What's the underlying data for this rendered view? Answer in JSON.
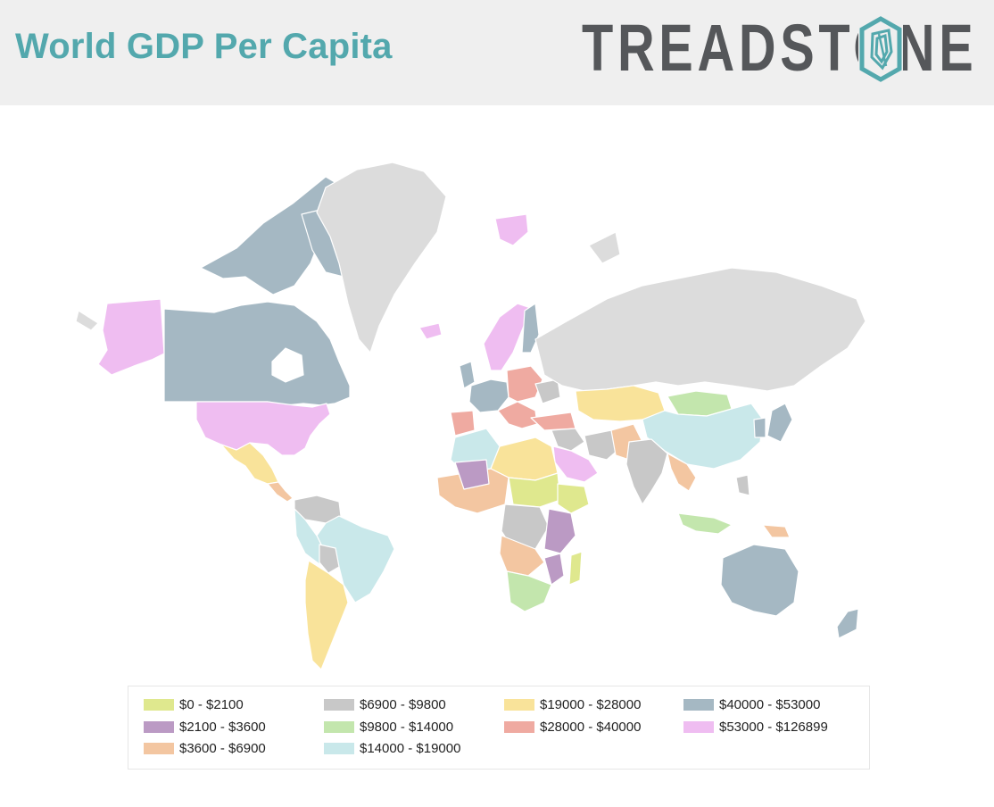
{
  "header": {
    "title": "World GDP Per Capita",
    "logo_text": "TREADSTONE",
    "logo_icon": "treadstone-o-logo-icon"
  },
  "legend": {
    "items": [
      {
        "label": "$0 - $2100",
        "color": "#dfe88e"
      },
      {
        "label": "$2100 - $3600",
        "color": "#bb9ac4"
      },
      {
        "label": "$3600 - $6900",
        "color": "#f3c6a1"
      },
      {
        "label": "$6900 - $9800",
        "color": "#c8c8c8"
      },
      {
        "label": "$9800 - $14000",
        "color": "#c3e6ad"
      },
      {
        "label": "$14000 - $19000",
        "color": "#c9e8ea"
      },
      {
        "label": "$19000 - $28000",
        "color": "#f9e39a"
      },
      {
        "label": "$28000 - $40000",
        "color": "#efaaa1"
      },
      {
        "label": "$40000 - $53000",
        "color": "#a5b8c3"
      },
      {
        "label": "$53000 - $126899",
        "color": "#efbdf1"
      }
    ]
  },
  "colors": {
    "title": "#53a8ad",
    "header_bg": "#efefef",
    "logo_gray": "#55575a",
    "logo_teal": "#53a8ad",
    "no_data": "#dcdcdc"
  }
}
